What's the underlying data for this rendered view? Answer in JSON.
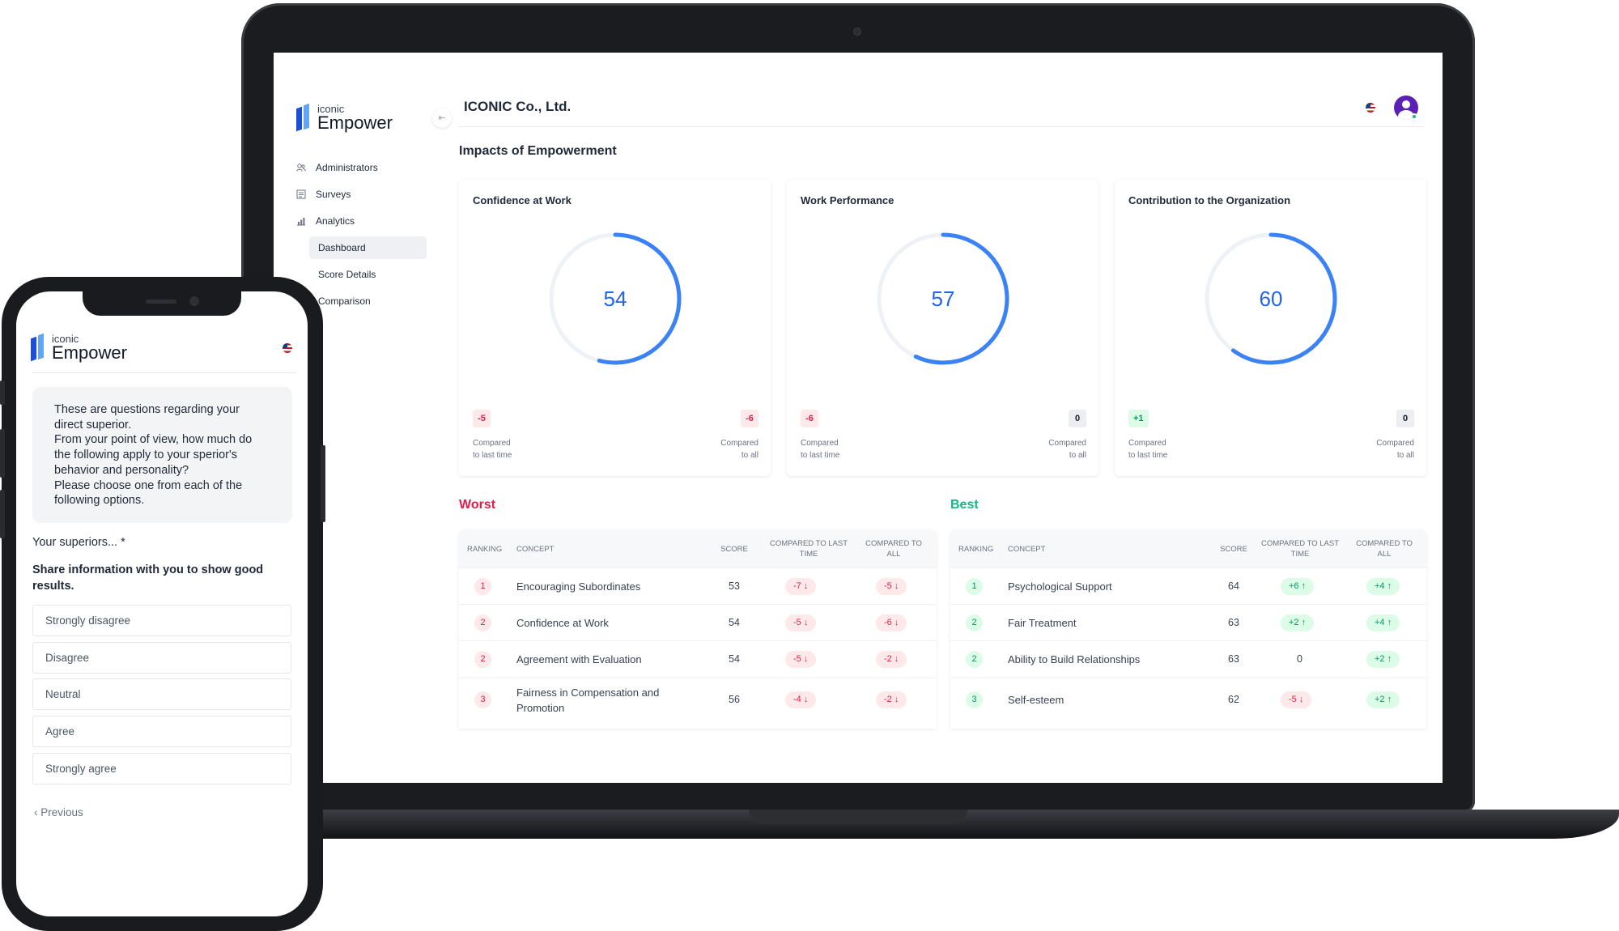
{
  "app": {
    "logo_sub": "iconic",
    "logo_main": "Empower"
  },
  "sidebar": {
    "items": [
      {
        "label": "Administrators",
        "icon": "users-icon"
      },
      {
        "label": "Surveys",
        "icon": "survey-icon"
      },
      {
        "label": "Analytics",
        "icon": "chart-icon"
      }
    ],
    "sub_items": [
      {
        "label": "Dashboard",
        "active": true
      },
      {
        "label": "Score Details",
        "active": false
      },
      {
        "label": "Comparison",
        "active": false
      }
    ],
    "collapse_icon": "collapse-left-icon"
  },
  "header": {
    "company": "ICONIC Co., Ltd.",
    "language_icon": "us-flag-icon",
    "avatar_icon": "user-avatar-icon"
  },
  "dashboard": {
    "section_title": "Impacts of Empowerment",
    "accent_color": "#2563eb",
    "cards": [
      {
        "title": "Confidence at Work",
        "score": 54,
        "score_text": "54",
        "vs_last": "-5",
        "vs_last_tone": "neg",
        "vs_all": "-6",
        "vs_all_tone": "neg",
        "cmp_last_1": "Compared",
        "cmp_last_2": "to last time",
        "cmp_all_1": "Compared",
        "cmp_all_2": "to all"
      },
      {
        "title": "Work Performance",
        "score": 57,
        "score_text": "57",
        "vs_last": "-6",
        "vs_last_tone": "neg",
        "vs_all": "0",
        "vs_all_tone": "zero",
        "cmp_last_1": "Compared",
        "cmp_last_2": "to last time",
        "cmp_all_1": "Compared",
        "cmp_all_2": "to all"
      },
      {
        "title": "Contribution to the Organization",
        "score": 60,
        "score_text": "60",
        "vs_last": "+1",
        "vs_last_tone": "pos",
        "vs_all": "0",
        "vs_all_tone": "zero",
        "cmp_last_1": "Compared",
        "cmp_last_2": "to last time",
        "cmp_all_1": "Compared",
        "cmp_all_2": "to all"
      }
    ]
  },
  "tables": {
    "columns": {
      "ranking": "RANKING",
      "concept": "CONCEPT",
      "score": "SCORE",
      "vs_last_1": "COMPARED TO LAST",
      "vs_last_2": "TIME",
      "vs_all_1": "COMPARED TO",
      "vs_all_2": "ALL"
    },
    "worst": {
      "title": "Worst",
      "color": "#e11d48",
      "rows": [
        {
          "rank": "1",
          "concept": "Encouraging Subordinates",
          "score": "53",
          "vs_last": "-7 ↓",
          "vs_last_tone": "neg",
          "vs_all": "-5 ↓",
          "vs_all_tone": "neg"
        },
        {
          "rank": "2",
          "concept": "Confidence at Work",
          "score": "54",
          "vs_last": "-5 ↓",
          "vs_last_tone": "neg",
          "vs_all": "-6 ↓",
          "vs_all_tone": "neg"
        },
        {
          "rank": "2",
          "concept": "Agreement with Evaluation",
          "score": "54",
          "vs_last": "-5 ↓",
          "vs_last_tone": "neg",
          "vs_all": "-2 ↓",
          "vs_all_tone": "neg"
        },
        {
          "rank": "3",
          "concept": "Fairness in Compensation and Promotion",
          "score": "56",
          "vs_last": "-4 ↓",
          "vs_last_tone": "neg",
          "vs_all": "-2 ↓",
          "vs_all_tone": "neg"
        }
      ]
    },
    "best": {
      "title": "Best",
      "color": "#10b981",
      "rows": [
        {
          "rank": "1",
          "concept": "Psychological Support",
          "score": "64",
          "vs_last": "+6 ↑",
          "vs_last_tone": "pos",
          "vs_all": "+4 ↑",
          "vs_all_tone": "pos"
        },
        {
          "rank": "2",
          "concept": "Fair Treatment",
          "score": "63",
          "vs_last": "+2 ↑",
          "vs_last_tone": "pos",
          "vs_all": "+4 ↑",
          "vs_all_tone": "pos"
        },
        {
          "rank": "2",
          "concept": "Ability to Build Relationships",
          "score": "63",
          "vs_last": "0",
          "vs_last_tone": "zero",
          "vs_all": "+2 ↑",
          "vs_all_tone": "pos"
        },
        {
          "rank": "3",
          "concept": "Self-esteem",
          "score": "62",
          "vs_last": "-5 ↓",
          "vs_last_tone": "neg",
          "vs_all": "+2 ↑",
          "vs_all_tone": "pos"
        }
      ]
    }
  },
  "phone": {
    "intro_lines": [
      "These are questions regarding your",
      "direct superior.",
      "From your point of view, how much do",
      "the following apply to your sperior's",
      "behavior and personality?",
      "Please choose one from each of the",
      "following options."
    ],
    "required_label": "Your superiors... *",
    "question": "Share information with you to show good results.",
    "options": [
      "Strongly disagree",
      "Disagree",
      "Neutral",
      "Agree",
      "Strongly agree"
    ],
    "previous_label": "Previous",
    "previous_icon": "chevron-left-icon"
  }
}
